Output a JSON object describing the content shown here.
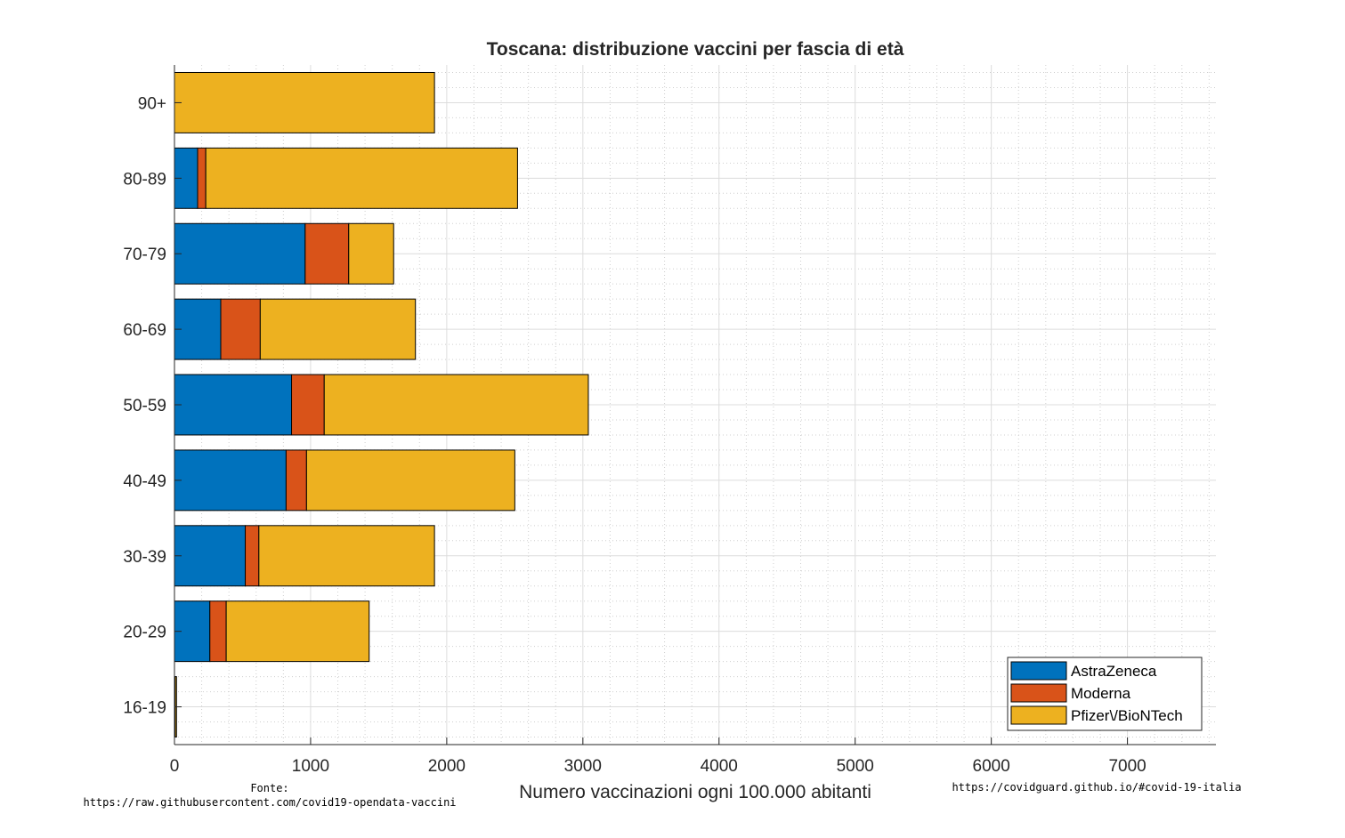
{
  "chart_data": {
    "type": "bar",
    "orientation": "horizontal",
    "stacked": true,
    "title": "Toscana: distribuzione vaccini per fascia di età",
    "xlabel": "Numero vaccinazioni ogni 100.000 abitanti",
    "ylabel": "",
    "xlim": [
      0,
      7650
    ],
    "xticks": [
      0,
      1000,
      2000,
      3000,
      4000,
      5000,
      6000,
      7000
    ],
    "categories": [
      "90+",
      "80-89",
      "70-79",
      "60-69",
      "50-59",
      "40-49",
      "30-39",
      "20-29",
      "16-19"
    ],
    "series": [
      {
        "name": "AstraZeneca",
        "color": "#0072BD",
        "values": [
          0,
          170,
          960,
          340,
          860,
          820,
          520,
          260,
          0
        ]
      },
      {
        "name": "Moderna",
        "color": "#D95319",
        "values": [
          0,
          60,
          320,
          290,
          240,
          150,
          100,
          120,
          5
        ]
      },
      {
        "name": "Pfizer\\/BioNTech",
        "color": "#EDB120",
        "values": [
          1910,
          2290,
          330,
          1140,
          1940,
          1530,
          1290,
          1050,
          10
        ]
      }
    ],
    "grid": true,
    "minor_grid": true,
    "legend_position": "bottom-right"
  },
  "annotations": {
    "source_label": "Fonte:",
    "source_url": "https://raw.githubusercontent.com/covid19-opendata-vaccini",
    "site_url": "https://covidguard.github.io/#covid-19-italia"
  }
}
